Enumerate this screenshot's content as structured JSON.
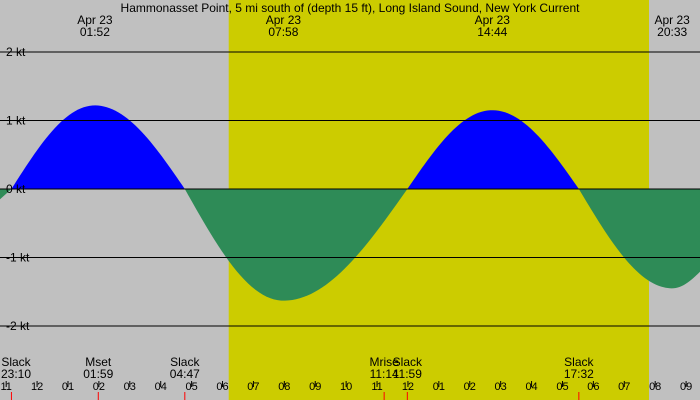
{
  "chart_data": {
    "type": "area",
    "title": "Hammonasset Point, 5 mi south of (depth 15 ft), Long Island Sound, New York Current",
    "x_unit": "hour of day",
    "y_unit": "kt",
    "ylim": [
      -2.3,
      2.3
    ],
    "grid": true,
    "colors": {
      "night": "#c0c0c0",
      "day": "#cccc00",
      "flood": "#0000ff",
      "ebb": "#2e8b57",
      "grid_line": "#000000",
      "tick_minor": "#ff0000"
    },
    "daylight": [
      6.2,
      19.8
    ],
    "y_ticks": [
      {
        "value": 2,
        "label": "2 kt"
      },
      {
        "value": 1,
        "label": "1 kt"
      },
      {
        "value": 0,
        "label": "0 kt"
      },
      {
        "value": -1,
        "label": "-1 kt"
      },
      {
        "value": -2,
        "label": "-2 kt"
      }
    ],
    "extremes_top": [
      {
        "date": "Apr 23",
        "time": "01:52",
        "hour": 1.87
      },
      {
        "date": "Apr 23",
        "time": "07:58",
        "hour": 7.97
      },
      {
        "date": "Apr 23",
        "time": "14:44",
        "hour": 14.73
      },
      {
        "date": "Apr 23",
        "time": "20:33",
        "hour": 20.55
      }
    ],
    "events_bottom": [
      {
        "label": "Slack",
        "time": "23:10",
        "hour": -0.83
      },
      {
        "label": "Mset",
        "time": "01:59",
        "hour": 1.98
      },
      {
        "label": "Slack",
        "time": "04:47",
        "hour": 4.78
      },
      {
        "label": "Mrise",
        "time": "11:14",
        "hour": 11.23
      },
      {
        "label": "Slack",
        "time": "11:59",
        "hour": 11.98
      },
      {
        "label": "Slack",
        "time": "17:32",
        "hour": 17.53
      }
    ],
    "series": [
      {
        "points": [
          [
            -0.83,
            0.0
          ],
          [
            1.87,
            1.22
          ],
          [
            4.78,
            0.0
          ],
          [
            7.97,
            -1.63
          ],
          [
            11.98,
            0.0
          ],
          [
            14.73,
            1.15
          ],
          [
            17.53,
            0.0
          ],
          [
            20.55,
            -1.45
          ],
          [
            22.5,
            -0.9
          ]
        ]
      }
    ],
    "x_ticks": [
      {
        "hour": -1,
        "label": "11"
      },
      {
        "hour": 0,
        "label": "12"
      },
      {
        "hour": 1,
        "label": "01"
      },
      {
        "hour": 2,
        "label": "02"
      },
      {
        "hour": 3,
        "label": "03"
      },
      {
        "hour": 4,
        "label": "04"
      },
      {
        "hour": 5,
        "label": "05"
      },
      {
        "hour": 6,
        "label": "06"
      },
      {
        "hour": 7,
        "label": "07"
      },
      {
        "hour": 8,
        "label": "08"
      },
      {
        "hour": 9,
        "label": "09"
      },
      {
        "hour": 10,
        "label": "10"
      },
      {
        "hour": 11,
        "label": "11"
      },
      {
        "hour": 12,
        "label": "12"
      },
      {
        "hour": 13,
        "label": "01"
      },
      {
        "hour": 14,
        "label": "02"
      },
      {
        "hour": 15,
        "label": "03"
      },
      {
        "hour": 16,
        "label": "04"
      },
      {
        "hour": 17,
        "label": "05"
      },
      {
        "hour": 18,
        "label": "06"
      },
      {
        "hour": 19,
        "label": "07"
      },
      {
        "hour": 20,
        "label": "08"
      },
      {
        "hour": 21,
        "label": "09"
      }
    ]
  }
}
